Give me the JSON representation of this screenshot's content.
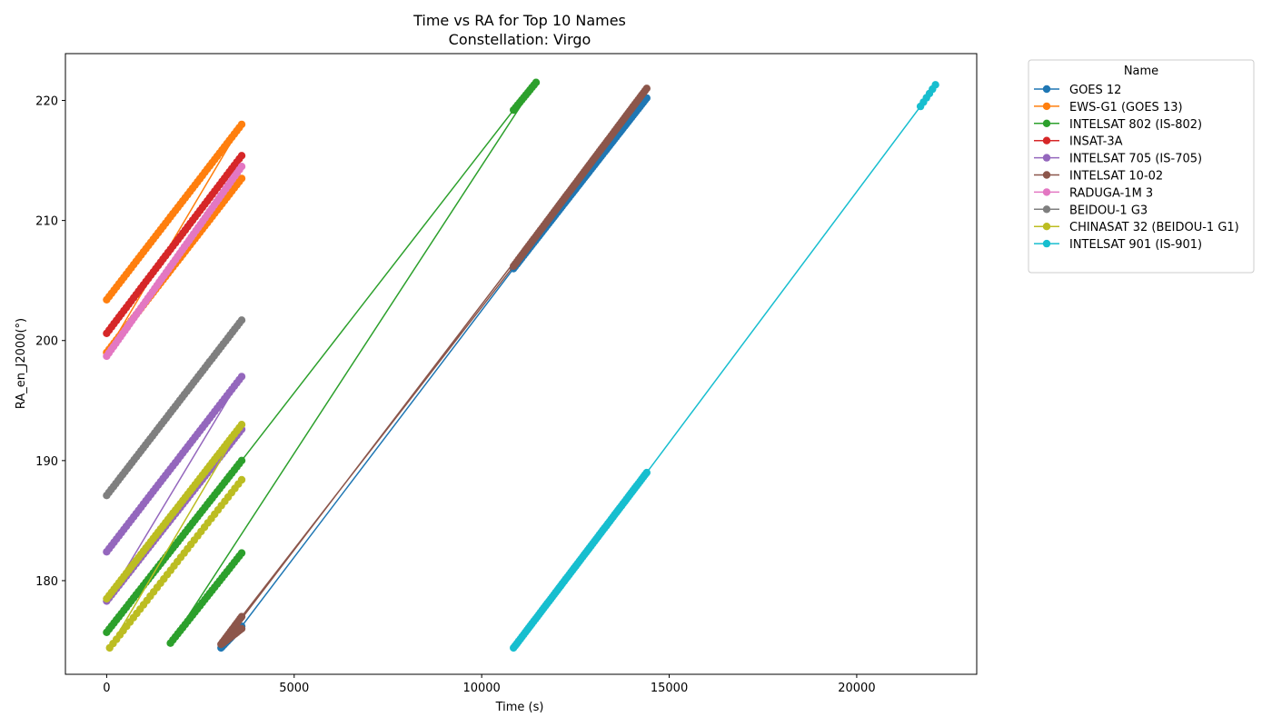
{
  "chart_data": {
    "type": "line",
    "title": "Time vs RA for Top 10 Names",
    "subtitle": "Constellation: Virgo",
    "xlabel": "Time (s)",
    "ylabel": "RA_en_J2000(°)",
    "xlim": [
      -1100,
      23200
    ],
    "ylim": [
      172.2,
      223.9
    ],
    "xticks": [
      0,
      5000,
      10000,
      15000,
      20000
    ],
    "yticks": [
      180,
      190,
      200,
      210,
      220
    ],
    "grid": false,
    "legend": {
      "title": "Name",
      "placement": "outside-upper-right"
    },
    "series": [
      {
        "name": "GOES 12",
        "color": "#1f77b4",
        "segments": [
          {
            "x_start": 3050,
            "x_end": 3600,
            "y_start": 174.4,
            "y_end": 176.2,
            "count": 14
          },
          {
            "x_start": 10850,
            "x_end": 14400,
            "y_start": 206.0,
            "y_end": 220.2,
            "count": 80
          }
        ]
      },
      {
        "name": "EWS-G1 (GOES 13)",
        "color": "#ff7f0e",
        "segments": [
          {
            "x_start": 0,
            "x_end": 3600,
            "y_start": 203.4,
            "y_end": 218.0,
            "count": 56
          },
          {
            "x_start": 0,
            "x_end": 3600,
            "y_start": 199.0,
            "y_end": 213.5,
            "count": 56
          }
        ]
      },
      {
        "name": "INTELSAT 802 (IS-802)",
        "color": "#2ca02c",
        "segments": [
          {
            "x_start": 0,
            "x_end": 3600,
            "y_start": 175.7,
            "y_end": 190.0,
            "count": 56
          },
          {
            "x_start": 10850,
            "x_end": 11450,
            "y_start": 219.2,
            "y_end": 221.5,
            "count": 12
          },
          {
            "x_start": 1700,
            "x_end": 3600,
            "y_start": 174.8,
            "y_end": 182.3,
            "count": 30
          }
        ]
      },
      {
        "name": "INSAT-3A",
        "color": "#d62728",
        "segments": [
          {
            "x_start": 0,
            "x_end": 3600,
            "y_start": 200.6,
            "y_end": 215.4,
            "count": 56
          }
        ]
      },
      {
        "name": "INTELSAT 705 (IS-705)",
        "color": "#9467bd",
        "segments": [
          {
            "x_start": 0,
            "x_end": 3600,
            "y_start": 182.4,
            "y_end": 197.0,
            "count": 56
          },
          {
            "x_start": 0,
            "x_end": 3600,
            "y_start": 178.3,
            "y_end": 192.6,
            "count": 56
          }
        ]
      },
      {
        "name": "INTELSAT 10-02",
        "color": "#8c564b",
        "segments": [
          {
            "x_start": 3050,
            "x_end": 3600,
            "y_start": 174.7,
            "y_end": 177.0,
            "count": 14
          },
          {
            "x_start": 10850,
            "x_end": 14400,
            "y_start": 206.2,
            "y_end": 221.0,
            "count": 80
          },
          {
            "x_start": 3100,
            "x_end": 3600,
            "y_start": 174.8,
            "y_end": 176.0,
            "count": 12
          }
        ]
      },
      {
        "name": "RADUGA-1M 3",
        "color": "#e377c2",
        "segments": [
          {
            "x_start": 0,
            "x_end": 3600,
            "y_start": 198.7,
            "y_end": 214.5,
            "count": 60
          }
        ]
      },
      {
        "name": "BEIDOU-1 G3",
        "color": "#7f7f7f",
        "segments": [
          {
            "x_start": 0,
            "x_end": 3600,
            "y_start": 187.1,
            "y_end": 201.7,
            "count": 60
          }
        ]
      },
      {
        "name": "CHINASAT 32 (BEIDOU-1 G1)",
        "color": "#bcbd22",
        "segments": [
          {
            "x_start": 0,
            "x_end": 3600,
            "y_start": 178.5,
            "y_end": 193.0,
            "count": 56
          },
          {
            "x_start": 80,
            "x_end": 3600,
            "y_start": 174.4,
            "y_end": 188.4,
            "count": 40
          }
        ]
      },
      {
        "name": "INTELSAT 901 (IS-901)",
        "color": "#17becf",
        "segments": [
          {
            "x_start": 10850,
            "x_end": 14400,
            "y_start": 174.4,
            "y_end": 189.0,
            "count": 80
          },
          {
            "x_start": 21700,
            "x_end": 22100,
            "y_start": 219.5,
            "y_end": 221.3,
            "count": 6
          }
        ]
      }
    ]
  }
}
